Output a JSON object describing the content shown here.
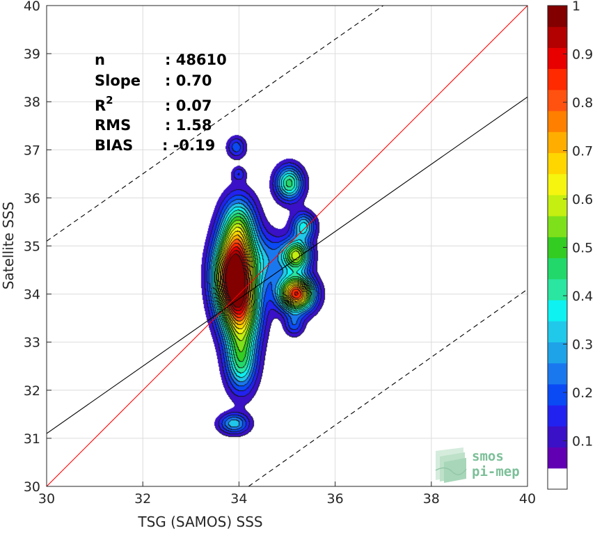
{
  "chart_data": {
    "type": "heatmap",
    "subtype": "density contour scatter comparison",
    "xlabel": "TSG (SAMOS) SSS",
    "ylabel": "Satellite SSS",
    "xlim": [
      30,
      40
    ],
    "ylim": [
      30,
      40
    ],
    "x_ticks": [
      30,
      32,
      34,
      36,
      38,
      40
    ],
    "y_ticks": [
      30,
      31,
      32,
      33,
      34,
      35,
      36,
      37,
      38,
      39,
      40
    ],
    "grid": true,
    "stats": [
      {
        "label": "n",
        "value": ": 48610"
      },
      {
        "label": "Slope",
        "value": ": 0.70"
      },
      {
        "label": "R",
        "sup": "2",
        "value": ": 0.07"
      },
      {
        "label": "RMS",
        "value": ": 1.58"
      },
      {
        "label": "BIAS",
        "value": ": -0.19"
      }
    ],
    "lines": [
      {
        "role": "one-to-one",
        "color": "#ff0000",
        "style": "solid",
        "points": [
          [
            30,
            30
          ],
          [
            40,
            40
          ]
        ]
      },
      {
        "role": "regression fit",
        "color": "#000000",
        "style": "solid",
        "points": [
          [
            30,
            31.1
          ],
          [
            40,
            38.1
          ]
        ]
      },
      {
        "role": "upper bound",
        "color": "#000000",
        "style": "dashed",
        "points": [
          [
            30,
            35.1
          ],
          [
            37.0,
            40
          ]
        ]
      },
      {
        "role": "lower bound",
        "color": "#000000",
        "style": "dashed",
        "points": [
          [
            34.2,
            30
          ],
          [
            40,
            34.1
          ]
        ]
      }
    ],
    "density_peaks": [
      {
        "x": 33.9,
        "y": 34.4,
        "sx": 0.28,
        "sy": 0.55,
        "w": 1.0
      },
      {
        "x": 34.0,
        "y": 35.4,
        "sx": 0.25,
        "sy": 0.45,
        "w": 0.4
      },
      {
        "x": 34.05,
        "y": 33.6,
        "sx": 0.28,
        "sy": 0.5,
        "w": 0.52
      },
      {
        "x": 34.05,
        "y": 32.6,
        "sx": 0.22,
        "sy": 0.45,
        "w": 0.38
      },
      {
        "x": 35.2,
        "y": 34.0,
        "sx": 0.25,
        "sy": 0.25,
        "w": 0.85
      },
      {
        "x": 35.2,
        "y": 34.8,
        "sx": 0.2,
        "sy": 0.22,
        "w": 0.55
      },
      {
        "x": 35.35,
        "y": 35.4,
        "sx": 0.17,
        "sy": 0.2,
        "w": 0.32
      },
      {
        "x": 35.05,
        "y": 36.3,
        "sx": 0.2,
        "sy": 0.25,
        "w": 0.42
      },
      {
        "x": 34.6,
        "y": 34.7,
        "sx": 0.32,
        "sy": 0.4,
        "w": 0.2
      },
      {
        "x": 33.9,
        "y": 31.3,
        "sx": 0.22,
        "sy": 0.15,
        "w": 0.28
      },
      {
        "x": 33.95,
        "y": 37.05,
        "sx": 0.14,
        "sy": 0.16,
        "w": 0.18
      },
      {
        "x": 34.0,
        "y": 36.5,
        "sx": 0.1,
        "sy": 0.1,
        "w": 0.13
      },
      {
        "x": 35.15,
        "y": 33.35,
        "sx": 0.14,
        "sy": 0.16,
        "w": 0.17
      }
    ],
    "contour_levels": [
      0.05,
      0.1,
      0.15,
      0.2,
      0.25,
      0.3,
      0.35,
      0.4,
      0.45,
      0.5,
      0.55,
      0.6,
      0.65,
      0.7,
      0.75,
      0.8,
      0.85,
      0.9,
      0.95
    ],
    "colorbar": {
      "min": 0,
      "max": 1,
      "tick_values": [
        0.1,
        0.2,
        0.3,
        0.4,
        0.5,
        0.6,
        0.7,
        0.8,
        0.9,
        1
      ],
      "tick_labels": [
        "0.1",
        "0.2",
        "0.3",
        "0.4",
        "0.5",
        "0.6",
        "0.7",
        "0.8",
        "0.9",
        "1"
      ],
      "colors": [
        "#ffffff",
        "#6100b3",
        "#3a11c6",
        "#2222f0",
        "#0a4af5",
        "#1a78ef",
        "#1ea3e8",
        "#20c8ea",
        "#0ef2f2",
        "#2ae6a0",
        "#22d86a",
        "#33cc22",
        "#7ee01a",
        "#c4ef10",
        "#f5f510",
        "#ffd600",
        "#ffae00",
        "#ff7f00",
        "#ff5210",
        "#ff2a00",
        "#e80000",
        "#b30000",
        "#820000"
      ]
    },
    "logo": {
      "line1": "smos",
      "line2": "pi-mep"
    }
  }
}
